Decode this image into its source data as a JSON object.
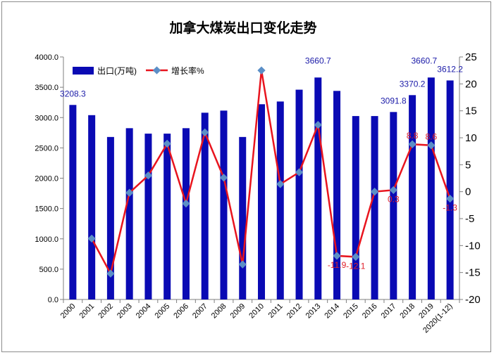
{
  "chart_data": {
    "type": "bar",
    "title": "加拿大煤炭出口变化走势",
    "categories": [
      "2000",
      "2001",
      "2002",
      "2003",
      "2004",
      "2005",
      "2006",
      "2007",
      "2008",
      "2009",
      "2010",
      "2011",
      "2012",
      "2013",
      "2014",
      "2015",
      "2016",
      "2017",
      "2018",
      "2019",
      "2020(1-12)"
    ],
    "series": [
      {
        "name": "出口(万吨)",
        "type": "bar",
        "axis": "left",
        "color": "#0a0ab4",
        "values": [
          3208.3,
          3040,
          2680,
          2825,
          2735,
          2735,
          2825,
          3080,
          3115,
          2680,
          3220,
          3265,
          3460,
          3660.7,
          3440,
          3025,
          3025,
          3091.8,
          3370.2,
          3660.7,
          3612.2
        ]
      },
      {
        "name": "增长率%",
        "type": "line",
        "axis": "right",
        "color": "#e8141e",
        "marker_color": "#5b8fc7",
        "values": [
          null,
          -8.7,
          -15.2,
          -0.2,
          3.0,
          8.9,
          -2.2,
          11.0,
          2.6,
          -13.5,
          22.5,
          1.4,
          3.6,
          12.4,
          -11.9,
          -12.1,
          0.0,
          0.3,
          8.8,
          8.6,
          -1.3
        ]
      }
    ],
    "data_labels": [
      {
        "series": 0,
        "index": 0,
        "text": "3208.3"
      },
      {
        "series": 0,
        "index": 13,
        "text": "3660.7"
      },
      {
        "series": 0,
        "index": 17,
        "text": "3091.8"
      },
      {
        "series": 0,
        "index": 18,
        "text": "3370.2"
      },
      {
        "series": 0,
        "index": 19,
        "text": "3660.7"
      },
      {
        "series": 0,
        "index": 20,
        "text": "3612.2"
      },
      {
        "series": 1,
        "index": 14,
        "text": "-11.9"
      },
      {
        "series": 1,
        "index": 15,
        "text": "-12.1"
      },
      {
        "series": 1,
        "index": 17,
        "text": "0.3"
      },
      {
        "series": 1,
        "index": 18,
        "text": "8.8"
      },
      {
        "series": 1,
        "index": 19,
        "text": "8.6"
      },
      {
        "series": 1,
        "index": 20,
        "text": "-1.3"
      }
    ],
    "y_left": {
      "min": 0,
      "max": 4000,
      "step": 500,
      "tick_decimals": 1
    },
    "y_right": {
      "min": -20,
      "max": 25,
      "step": 5
    },
    "grid": false,
    "legend_position": "top-left"
  }
}
